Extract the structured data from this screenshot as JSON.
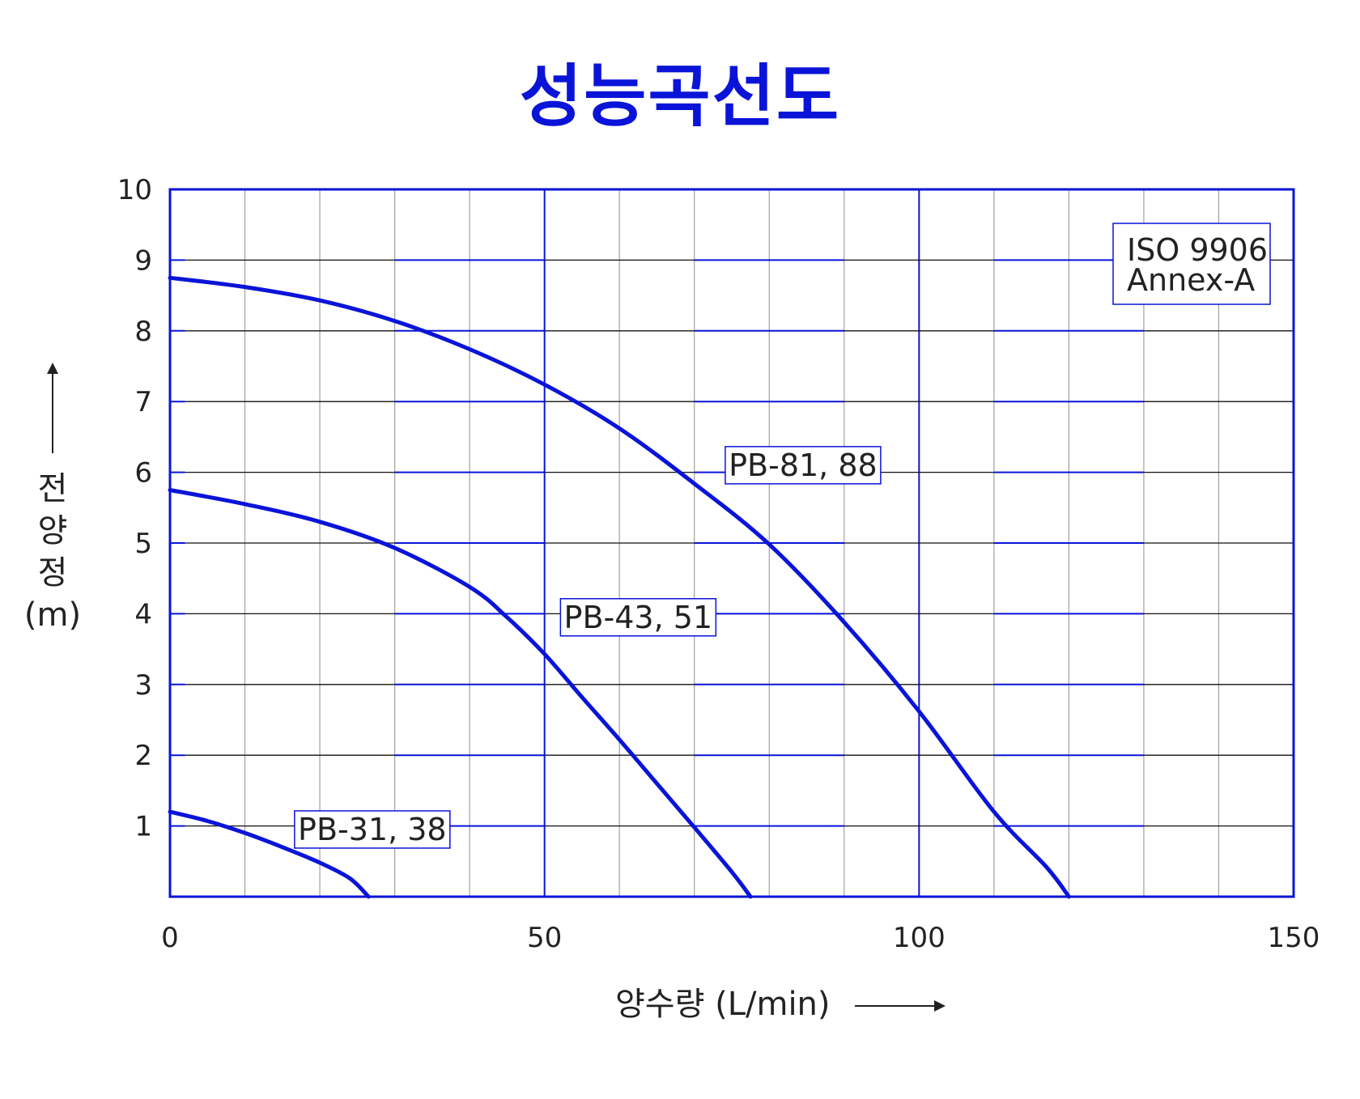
{
  "colors": {
    "accent": "#0a14d8",
    "grid_major": "#111111",
    "grid_minor": "#a0a0a0"
  },
  "chart_data": {
    "type": "line",
    "title": "성능곡선도",
    "xlabel": "양수량 (L/min)",
    "ylabel_lines": [
      "전",
      "양",
      "정",
      "(m)"
    ],
    "xlim": [
      0,
      150
    ],
    "ylim": [
      0,
      10
    ],
    "x_ticks": [
      "0",
      "50",
      "100",
      "150"
    ],
    "y_ticks": [
      "1",
      "2",
      "3",
      "4",
      "5",
      "6",
      "7",
      "8",
      "9",
      "10"
    ],
    "grid": true,
    "annotation": [
      "ISO  9906",
      "Annex-A"
    ],
    "series": [
      {
        "name": "PB-31, 38",
        "x": [
          0,
          5,
          10,
          15,
          20,
          24,
          26.5
        ],
        "y": [
          1.2,
          1.07,
          0.9,
          0.7,
          0.48,
          0.26,
          0
        ]
      },
      {
        "name": "PB-43, 51",
        "x": [
          0,
          10,
          20,
          30,
          40,
          45,
          50,
          55,
          60,
          65,
          70,
          75,
          77.5
        ],
        "y": [
          5.75,
          5.55,
          5.3,
          4.93,
          4.38,
          3.95,
          3.43,
          2.82,
          2.22,
          1.6,
          0.98,
          0.35,
          0
        ]
      },
      {
        "name": "PB-81, 88",
        "x": [
          0,
          10,
          20,
          30,
          40,
          50,
          60,
          70,
          80,
          90,
          100,
          110,
          117,
          120
        ],
        "y": [
          8.75,
          8.62,
          8.43,
          8.14,
          7.74,
          7.24,
          6.62,
          5.84,
          4.98,
          3.88,
          2.62,
          1.2,
          0.42,
          0
        ]
      }
    ],
    "series_labels": [
      {
        "text": "PB-31, 38",
        "x": 27,
        "y": 0.95
      },
      {
        "text": "PB-43, 51",
        "x": 62.5,
        "y": 3.95
      },
      {
        "text": "PB-81, 88",
        "x": 84.5,
        "y": 6.1
      }
    ]
  }
}
